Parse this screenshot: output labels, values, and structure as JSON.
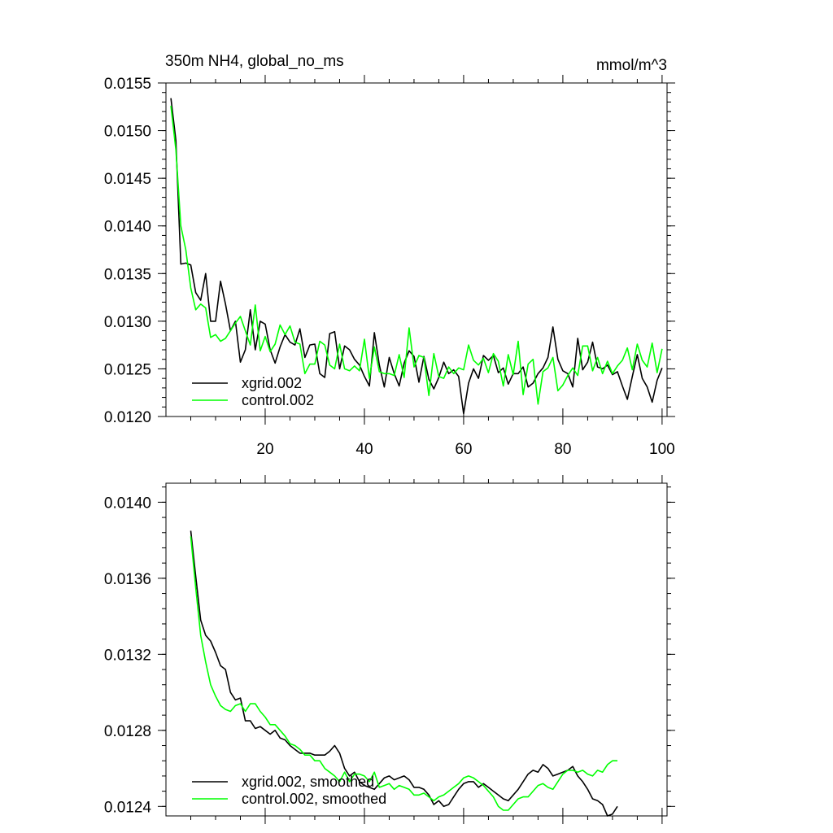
{
  "chart_data": [
    {
      "type": "line",
      "title": "350m NH4, global_no_ms",
      "units_label": "mmol/m^3",
      "xlim": [
        0,
        101
      ],
      "ylim": [
        0.012,
        0.0155
      ],
      "xticks": [
        20,
        40,
        60,
        80,
        100
      ],
      "xtick_labels": [
        "20",
        "40",
        "60",
        "80",
        "100"
      ],
      "yticks": [
        0.012,
        0.0125,
        0.013,
        0.0135,
        0.014,
        0.0145,
        0.015,
        0.0155
      ],
      "ytick_labels": [
        "0.0120",
        "0.0125",
        "0.0130",
        "0.0135",
        "0.0140",
        "0.0145",
        "0.0150",
        "0.0155"
      ],
      "legend_position": "bottom-left",
      "series": [
        {
          "name": "xgrid.002",
          "color": "#000000",
          "x_start": 1,
          "values": [
            0.01534,
            0.0149,
            0.0136,
            0.01361,
            0.01359,
            0.0133,
            0.01322,
            0.0135,
            0.013,
            0.013,
            0.01342,
            0.01318,
            0.0129,
            0.013,
            0.01257,
            0.0127,
            0.01312,
            0.0127,
            0.013,
            0.01297,
            0.0127,
            0.01256,
            0.01273,
            0.01286,
            0.01278,
            0.01275,
            0.01292,
            0.01262,
            0.01275,
            0.01276,
            0.01245,
            0.01241,
            0.01287,
            0.01289,
            0.0125,
            0.01274,
            0.0127,
            0.0126,
            0.01254,
            0.01242,
            0.01232,
            0.01288,
            0.01254,
            0.01231,
            0.01262,
            0.01245,
            0.01232,
            0.01256,
            0.01269,
            0.01263,
            0.01236,
            0.01263,
            0.01239,
            0.01229,
            0.01241,
            0.01257,
            0.01245,
            0.01249,
            0.01242,
            0.01203,
            0.01235,
            0.0125,
            0.0124,
            0.01264,
            0.01259,
            0.01264,
            0.01246,
            0.01251,
            0.01234,
            0.01245,
            0.01245,
            0.01252,
            0.01231,
            0.01235,
            0.01245,
            0.01251,
            0.01262,
            0.01294,
            0.0126,
            0.01248,
            0.01245,
            0.01231,
            0.01282,
            0.01249,
            0.01257,
            0.01278,
            0.01252,
            0.0125,
            0.01254,
            0.01244,
            0.01247,
            0.01232,
            0.01218,
            0.01242,
            0.01265,
            0.0124,
            0.01231,
            0.01215,
            0.01238,
            0.01251
          ]
        },
        {
          "name": "control.002",
          "color": "#00ff00",
          "x_start": 1,
          "values": [
            0.01526,
            0.0148,
            0.014,
            0.01375,
            0.01335,
            0.01312,
            0.01318,
            0.01314,
            0.01283,
            0.01286,
            0.01279,
            0.01282,
            0.0129,
            0.01298,
            0.01305,
            0.0129,
            0.01275,
            0.01317,
            0.01269,
            0.01284,
            0.01268,
            0.01276,
            0.01296,
            0.01286,
            0.01295,
            0.01278,
            0.01276,
            0.01245,
            0.01255,
            0.01255,
            0.01279,
            0.01275,
            0.01254,
            0.0125,
            0.01276,
            0.0125,
            0.01248,
            0.01253,
            0.01248,
            0.01281,
            0.0124,
            0.01273,
            0.01247,
            0.01245,
            0.01245,
            0.01243,
            0.01265,
            0.01241,
            0.01293,
            0.01252,
            0.01264,
            0.01262,
            0.01222,
            0.01266,
            0.01242,
            0.0124,
            0.01252,
            0.01245,
            0.01251,
            0.01249,
            0.01275,
            0.01259,
            0.01254,
            0.01261,
            0.01246,
            0.01266,
            0.01258,
            0.01232,
            0.01265,
            0.01244,
            0.01279,
            0.01223,
            0.01255,
            0.0126,
            0.01213,
            0.01247,
            0.01251,
            0.01262,
            0.01227,
            0.01233,
            0.01243,
            0.01251,
            0.01243,
            0.01274,
            0.01274,
            0.01248,
            0.01262,
            0.01245,
            0.01258,
            0.01245,
            0.01253,
            0.01259,
            0.01272,
            0.01249,
            0.01276,
            0.01259,
            0.01252,
            0.01277,
            0.01246,
            0.01271
          ]
        }
      ]
    },
    {
      "type": "line",
      "title": "",
      "xlim": [
        0,
        101
      ],
      "ylim": [
        0.01235,
        0.0141
      ],
      "xticks": [
        20,
        40,
        60,
        80,
        100
      ],
      "xtick_labels": [],
      "yticks": [
        0.0124,
        0.0128,
        0.0132,
        0.0136,
        0.014
      ],
      "ytick_labels": [
        "0.0124",
        "0.0128",
        "0.0132",
        "0.0136",
        "0.0140"
      ],
      "legend_position": "bottom-left",
      "series": [
        {
          "name": "xgrid.002, smoothed",
          "color": "#000000",
          "x_start": 5,
          "values": [
            0.01385,
            0.01361,
            0.01338,
            0.0133,
            0.01327,
            0.01321,
            0.01314,
            0.01312,
            0.013,
            0.01296,
            0.01297,
            0.01285,
            0.01285,
            0.01281,
            0.01282,
            0.0128,
            0.01278,
            0.0128,
            0.01276,
            0.01275,
            0.01272,
            0.0127,
            0.01268,
            0.01268,
            0.01268,
            0.01267,
            0.01267,
            0.01267,
            0.01269,
            0.01272,
            0.01268,
            0.0126,
            0.01256,
            0.01258,
            0.01253,
            0.01251,
            0.0125,
            0.01249,
            0.01252,
            0.01255,
            0.01256,
            0.01254,
            0.01255,
            0.01256,
            0.01254,
            0.0125,
            0.0125,
            0.01249,
            0.01246,
            0.01241,
            0.01243,
            0.0124,
            0.01241,
            0.01245,
            0.01249,
            0.01252,
            0.01253,
            0.01253,
            0.0125,
            0.01252,
            0.0125,
            0.01248,
            0.01246,
            0.01244,
            0.01243,
            0.01246,
            0.01249,
            0.01253,
            0.01257,
            0.01259,
            0.01258,
            0.01262,
            0.0126,
            0.01256,
            0.01257,
            0.01258,
            0.01259,
            0.01261,
            0.01256,
            0.01253,
            0.01249,
            0.01244,
            0.01243,
            0.01241,
            0.01235,
            0.01236,
            0.0124
          ]
        },
        {
          "name": "control.002, smoothed",
          "color": "#00ff00",
          "x_start": 5,
          "values": [
            0.01382,
            0.01355,
            0.0133,
            0.01316,
            0.01304,
            0.01298,
            0.01293,
            0.01291,
            0.0129,
            0.01293,
            0.01294,
            0.0129,
            0.01294,
            0.01294,
            0.0129,
            0.01287,
            0.01283,
            0.01283,
            0.0128,
            0.01277,
            0.01273,
            0.01272,
            0.0127,
            0.01267,
            0.01267,
            0.01264,
            0.01264,
            0.0126,
            0.01258,
            0.01256,
            0.01253,
            0.01258,
            0.01253,
            0.01257,
            0.01257,
            0.01256,
            0.01253,
            0.01258,
            0.0125,
            0.01251,
            0.01252,
            0.01249,
            0.01251,
            0.0125,
            0.01249,
            0.01246,
            0.01246,
            0.01247,
            0.01245,
            0.01243,
            0.01245,
            0.01246,
            0.01248,
            0.0125,
            0.01252,
            0.01255,
            0.01256,
            0.01255,
            0.01253,
            0.01251,
            0.01248,
            0.01245,
            0.0124,
            0.01238,
            0.01238,
            0.01241,
            0.01244,
            0.01245,
            0.01245,
            0.01248,
            0.01251,
            0.01252,
            0.0125,
            0.01249,
            0.01253,
            0.01257,
            0.01259,
            0.01259,
            0.01258,
            0.01259,
            0.01257,
            0.01256,
            0.01259,
            0.01258,
            0.01262,
            0.01264,
            0.01264
          ]
        }
      ]
    }
  ]
}
